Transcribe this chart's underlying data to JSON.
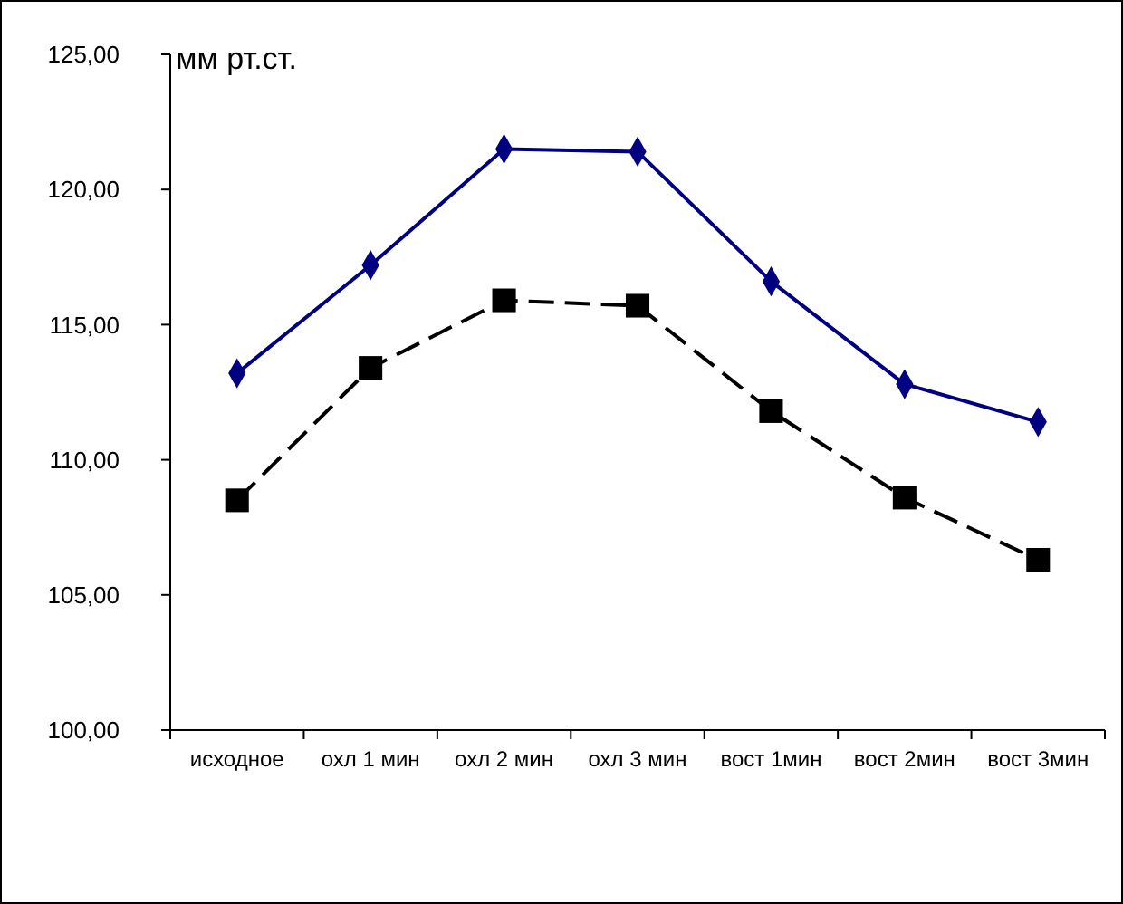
{
  "chart_data": {
    "type": "line",
    "ylabel": "мм рт.ст.",
    "categories": [
      "исходное",
      "охл 1 мин",
      "охл 2 мин",
      "охл 3 мин",
      "вост 1мин",
      "вост 2мин",
      "вост 3мин"
    ],
    "series": [
      {
        "color": "#000080",
        "marker": "diamond",
        "line_style": "solid",
        "values": [
          113.2,
          117.2,
          121.5,
          121.4,
          116.6,
          112.8,
          111.4
        ]
      },
      {
        "color": "#000000",
        "marker": "square",
        "line_style": "dashed",
        "values": [
          108.5,
          113.4,
          115.9,
          115.7,
          111.8,
          108.6,
          106.3
        ]
      }
    ],
    "ylim": [
      100,
      125
    ],
    "yticks": [
      {
        "value": 100,
        "label": "100,00"
      },
      {
        "value": 105,
        "label": "105,00"
      },
      {
        "value": 110,
        "label": "110,00"
      },
      {
        "value": 115,
        "label": "115,00"
      },
      {
        "value": 120,
        "label": "120,00"
      },
      {
        "value": 125,
        "label": "125,00"
      }
    ],
    "grid": false
  }
}
